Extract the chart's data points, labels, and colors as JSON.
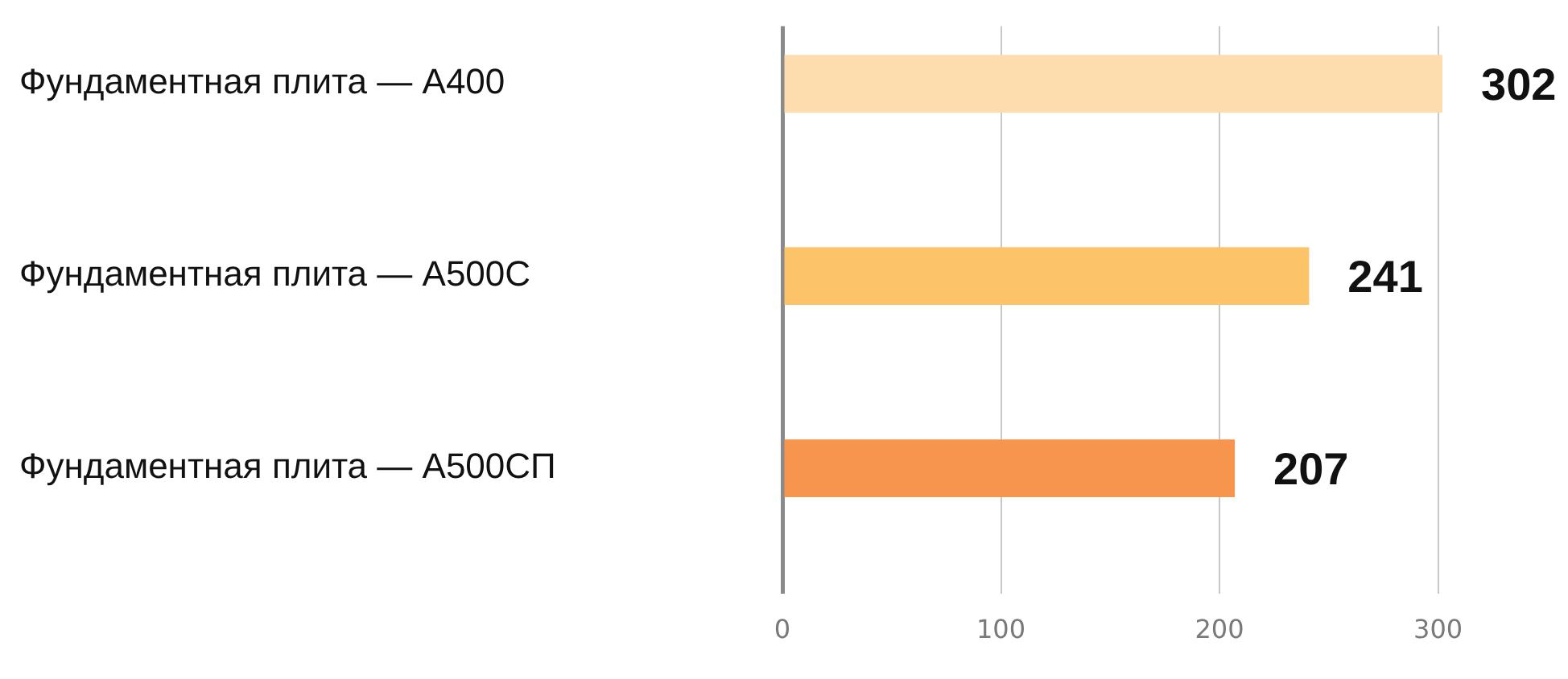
{
  "chart_data": {
    "type": "bar",
    "orientation": "horizontal",
    "categories": [
      "Фундаментная плита — А400",
      "Фундаментная плита — А500С",
      "Фундаментная плита — А500СП"
    ],
    "values": [
      302,
      241,
      207
    ],
    "colors": [
      "#fddcad",
      "#fdc369",
      "#f7944d"
    ],
    "xlim": [
      0,
      302
    ],
    "xticks": [
      0,
      100,
      200,
      300
    ],
    "grid": "x",
    "data_labels": true
  }
}
